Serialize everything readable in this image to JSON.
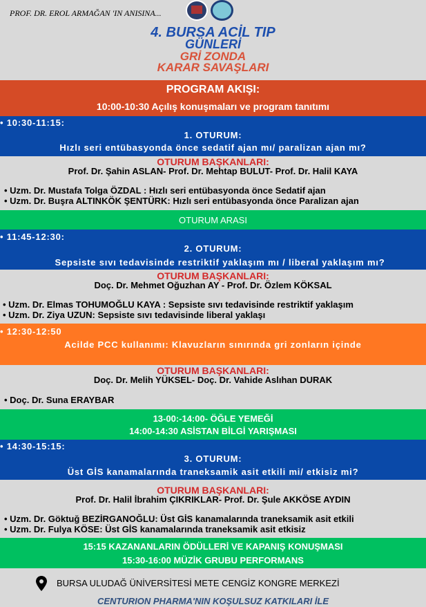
{
  "header": {
    "dedication": "PROF. DR. EROL ARMAĞAN 'IN ANISINA...",
    "title_line1": "4. BURSA ACİL TIP",
    "title_line2": "GÜNLERİ",
    "subtitle_line1": "GRİ ZONDA",
    "subtitle_line2": "KARAR SAVAŞLARI",
    "logos": [
      "university-seal-logo",
      "bursa-uludag-university-logo"
    ]
  },
  "colors": {
    "background": "#d9d9d9",
    "red_band": "#d54b26",
    "blue": "#0a49a8",
    "green": "#00c060",
    "orange": "#ff7722",
    "chair_red": "#d42a2a",
    "footer_blue": "#2f4f7f"
  },
  "program": {
    "heading": "PROGRAM AKIŞI:",
    "opening": "10:00-10:30 Açılış konuşmaları ve program tanıtımı"
  },
  "sessions": [
    {
      "time": "• 10:30-11:15:",
      "title": "1. OTURUM:",
      "topic": "Hızlı seri entübasyonda önce sedatif ajan mı/ paralizan ajan mı?",
      "chairs_label": "OTURUM BAŞKANLARI:",
      "chairs": "Prof. Dr. Şahin ASLAN- Prof. Dr. Mehtap BULUT- Prof. Dr. Halil KAYA",
      "speakers": [
        "• Uzm. Dr. Mustafa Tolga ÖZDAL : Hızlı seri entübasyonda önce Sedatif ajan",
        "• Uzm. Dr. Buşra ALTINKÖK ŞENTÜRK: Hızlı seri entübasyonda önce Paralizan ajan"
      ]
    },
    {
      "time": "• 11:45-12:30:",
      "title": "2. OTURUM:",
      "topic": "Sepsiste sıvı tedavisinde restriktif yaklaşım mı / liberal yaklaşım mı?",
      "chairs_label": "OTURUM BAŞKANLARI:",
      "chairs": "Doç. Dr. Mehmet Oğuzhan AY - Prof. Dr. Özlem KÖKSAL",
      "speakers": [
        "• Uzm. Dr. Elmas TOHUMOĞLU KAYA : Sepsiste sıvı tedavisinde restriktif yaklaşım",
        "• Uzm. Dr. Ziya UZUN: Sepsiste sıvı tedavisinde liberal yaklaşı"
      ]
    },
    {
      "time": "• 12:30-12:50",
      "topic": "Acilde PCC kullanımı: Klavuzların sınırında gri zonların içinde",
      "chairs_label": "OTURUM BAŞKANLARI:",
      "chairs": "Doç. Dr. Melih YÜKSEL- Doç. Dr. Vahide Aslıhan DURAK",
      "speakers": [
        "• Doç. Dr. Suna ERAYBAR"
      ]
    },
    {
      "time": "• 14:30-15:15:",
      "title": "3. OTURUM:",
      "topic": "Üst GİS kanamalarında traneksamik asit etkili mi/ etkisiz mi?",
      "chairs_label": "OTURUM BAŞKANLARI:",
      "chairs": "Prof. Dr. Halil İbrahim ÇIKRIKLAR- Prof. Dr. Şule AKKÖSE AYDIN",
      "speakers": [
        "• Uzm. Dr. Göktuğ BEZİRGANOĞLU: Üst GİS kanamalarında traneksamik asit etkili",
        "• Uzm. Dr.  Fulya KÖSE: Üst GİS kanamalarında traneksamik asit etkisiz"
      ]
    }
  ],
  "breaks": {
    "session_break": "OTURUM ARASI",
    "lunch": "13-00:-14:00- ÖĞLE YEMEĞİ",
    "quiz": "14:00-14:30 ASİSTAN BİLGİ YARIŞMASI",
    "awards": "15:15 KAZANANLARIN ÖDÜLLERİ VE KAPANIŞ KONUŞMASI",
    "music": "15:30-16:00 MÜZİK GRUBU PERFORMANS"
  },
  "footer": {
    "location_icon": "map-pin-icon",
    "location": "BURSA ULUDAĞ ÜNİVERSİTESİ METE CENGİZ KONGRE MERKEZİ",
    "sponsor": "CENTURION PHARMA'NIN KOŞULSUZ KATKILARI İLE"
  }
}
